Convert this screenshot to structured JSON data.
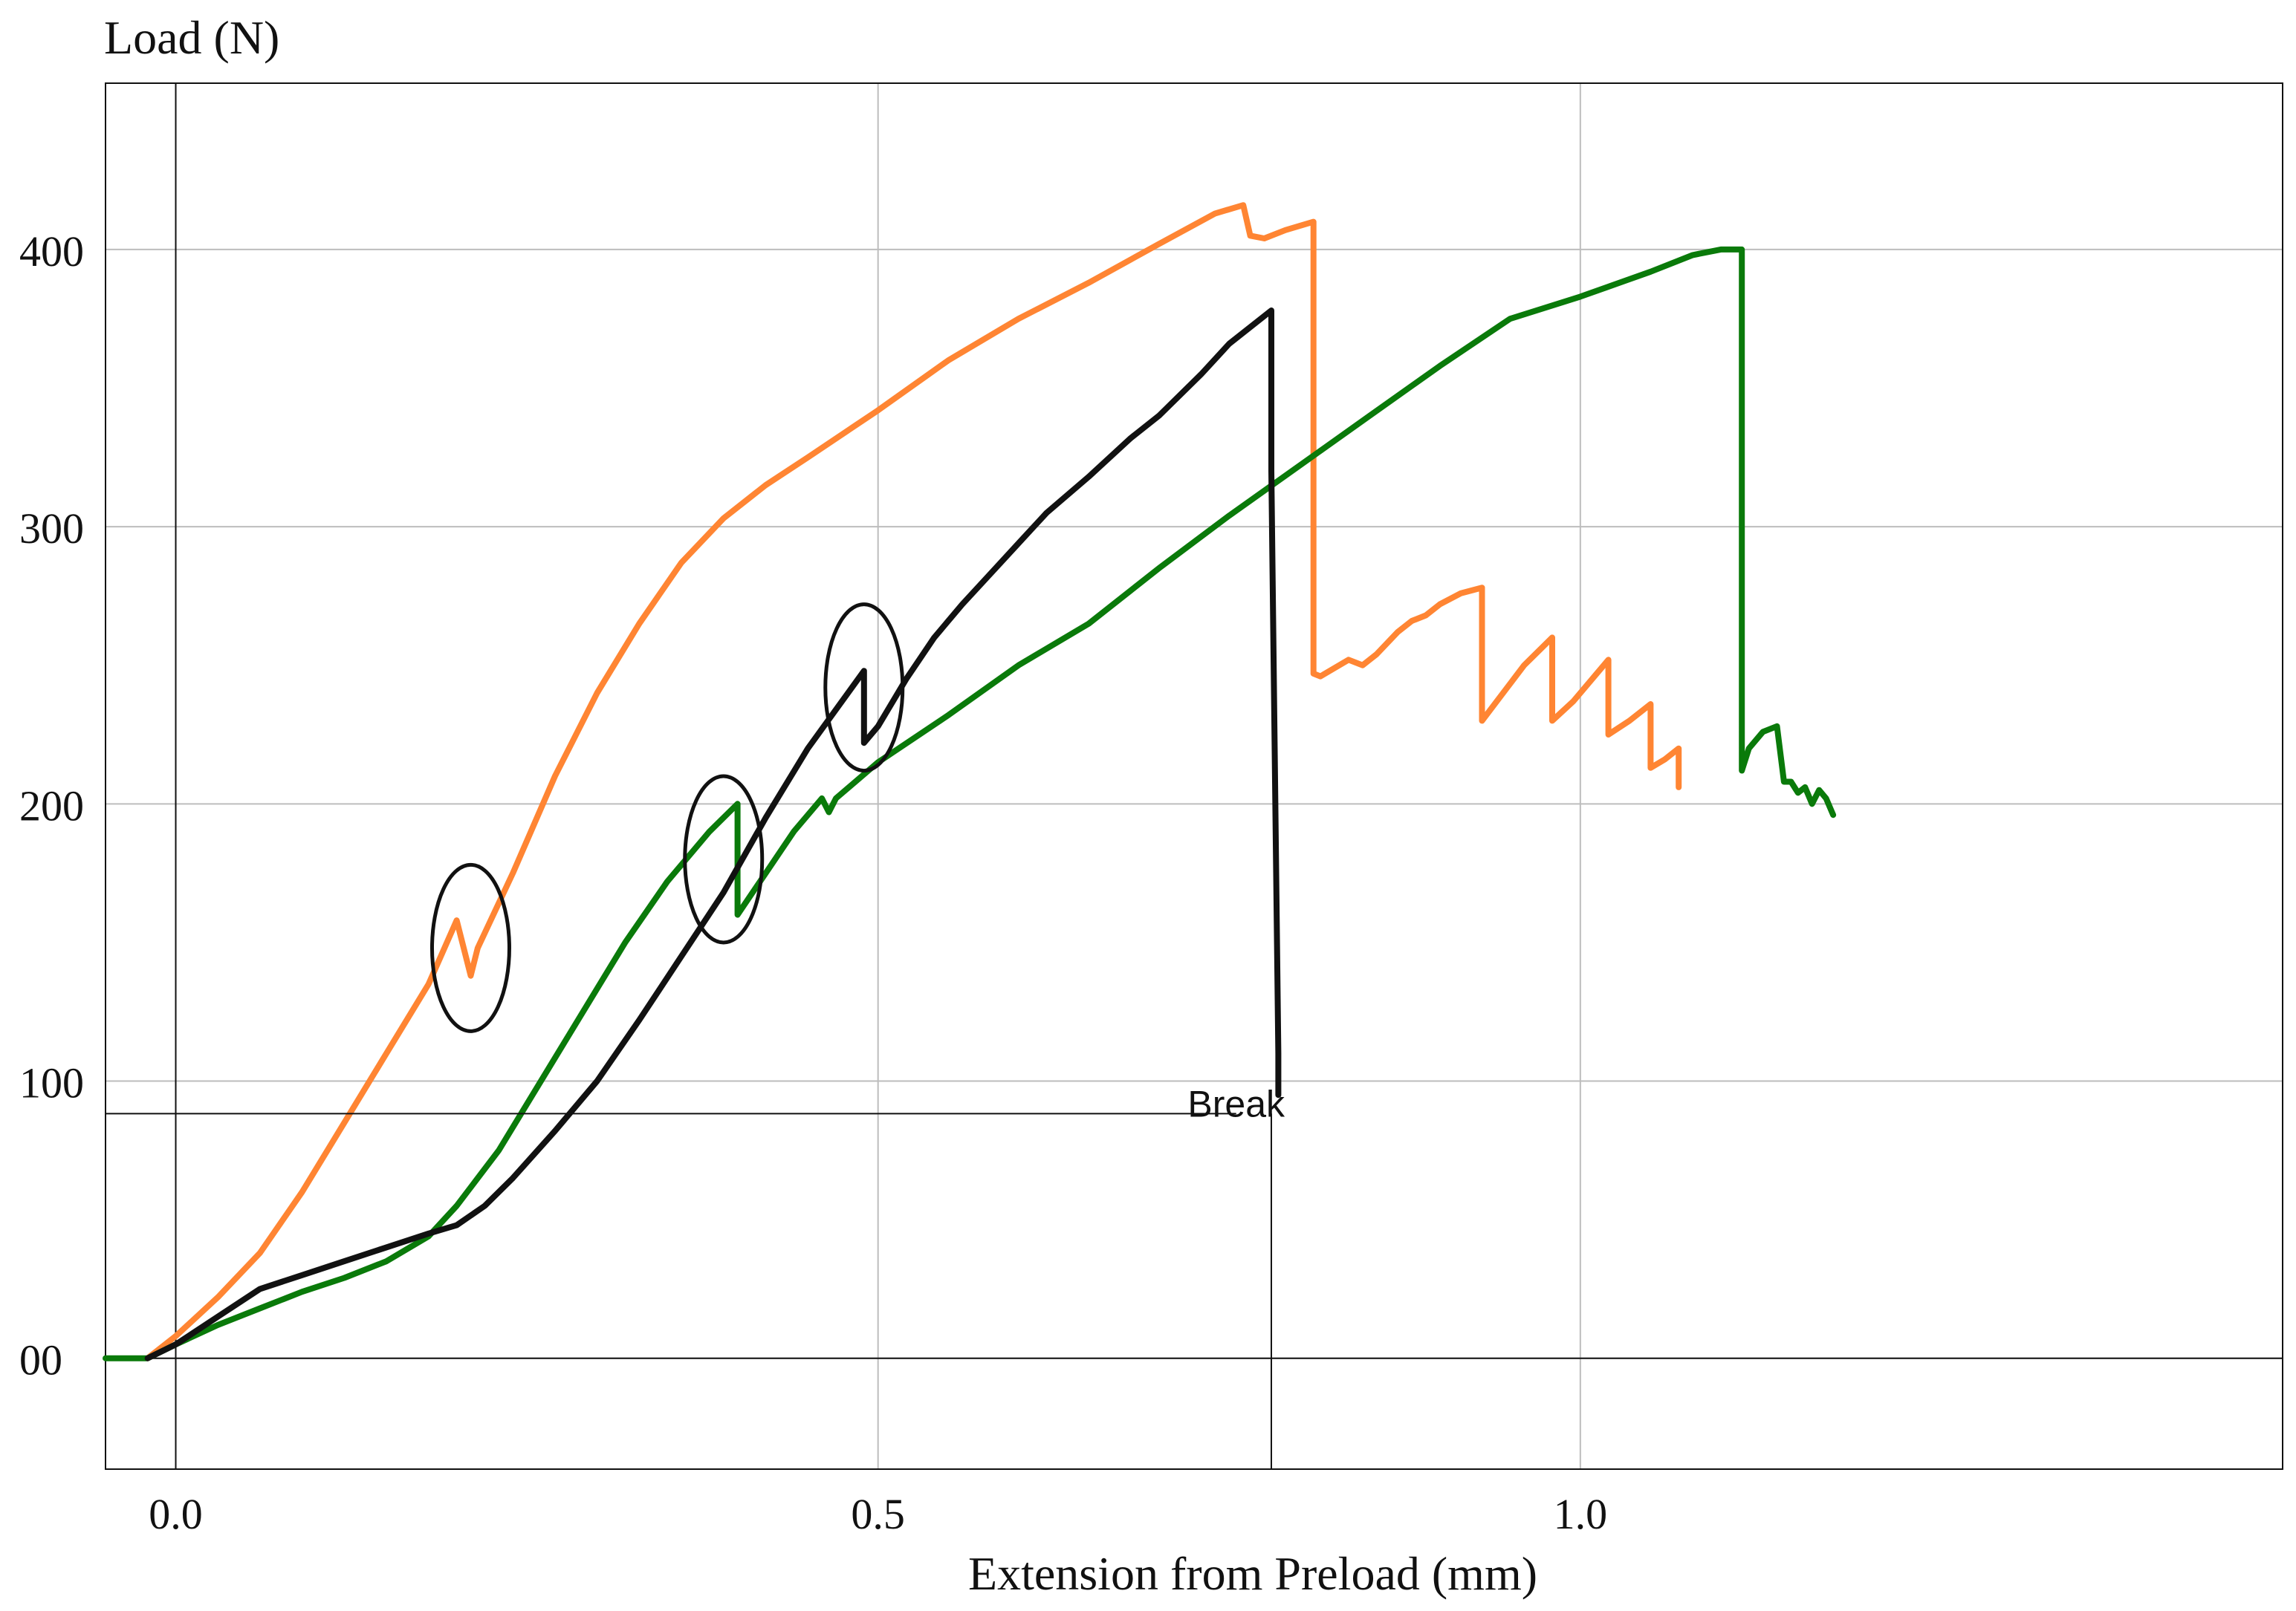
{
  "chart_data": {
    "type": "line",
    "xlabel": "Extension from Preload (mm)",
    "ylabel": "Load (N)",
    "xlim": [
      -0.05,
      1.5
    ],
    "ylim": [
      -40,
      460
    ],
    "x_ticks": [
      0.0,
      0.5,
      1.0
    ],
    "x_tick_labels": [
      "0.0",
      "0.5",
      "1.0"
    ],
    "y_ticks": [
      0,
      100,
      200,
      300,
      400
    ],
    "y_tick_labels": [
      "00",
      "100",
      "200",
      "300",
      "400"
    ],
    "grid": true,
    "legend": "none",
    "series": [
      {
        "color": "#ff8533",
        "x": [
          -0.02,
          0.0,
          0.03,
          0.06,
          0.09,
          0.12,
          0.15,
          0.18,
          0.2,
          0.21,
          0.215,
          0.24,
          0.27,
          0.3,
          0.33,
          0.36,
          0.39,
          0.42,
          0.45,
          0.5,
          0.55,
          0.6,
          0.65,
          0.7,
          0.74,
          0.76,
          0.765,
          0.775,
          0.79,
          0.81,
          0.81,
          0.815,
          0.835,
          0.845,
          0.855,
          0.87,
          0.88,
          0.89,
          0.9,
          0.915,
          0.93,
          0.93,
          0.945,
          0.96,
          0.98,
          0.98,
          0.995,
          1.02,
          1.02,
          1.035,
          1.05,
          1.05,
          1.06,
          1.07,
          1.07
        ],
        "y": [
          0,
          8,
          22,
          38,
          60,
          85,
          110,
          135,
          158,
          138,
          148,
          175,
          210,
          240,
          265,
          287,
          303,
          315,
          325,
          342,
          360,
          375,
          388,
          402,
          413,
          416,
          405,
          404,
          407,
          410,
          247,
          246,
          252,
          250,
          254,
          262,
          266,
          268,
          272,
          276,
          278,
          230,
          240,
          250,
          260,
          230,
          237,
          252,
          225,
          230,
          236,
          213,
          216,
          220,
          206
        ]
      },
      {
        "color": "#0a7a0a",
        "x": [
          -0.05,
          -0.02,
          0.0,
          0.03,
          0.06,
          0.09,
          0.12,
          0.15,
          0.18,
          0.2,
          0.23,
          0.26,
          0.29,
          0.32,
          0.35,
          0.38,
          0.4,
          0.4,
          0.42,
          0.44,
          0.46,
          0.465,
          0.47,
          0.5,
          0.55,
          0.6,
          0.65,
          0.7,
          0.75,
          0.8,
          0.85,
          0.9,
          0.95,
          1.0,
          1.05,
          1.08,
          1.1,
          1.115,
          1.115,
          1.12,
          1.13,
          1.14,
          1.145,
          1.15,
          1.155,
          1.16,
          1.165,
          1.17,
          1.175,
          1.18
        ],
        "y": [
          0,
          0,
          5,
          12,
          18,
          24,
          29,
          35,
          44,
          55,
          75,
          100,
          125,
          150,
          172,
          190,
          200,
          160,
          175,
          190,
          202,
          197,
          202,
          215,
          232,
          250,
          265,
          285,
          304,
          322,
          340,
          358,
          375,
          383,
          392,
          398,
          400,
          400,
          212,
          220,
          226,
          228,
          208,
          208,
          204,
          206,
          200,
          205,
          202,
          196
        ]
      },
      {
        "color": "#111111",
        "x": [
          -0.02,
          0.0,
          0.03,
          0.06,
          0.09,
          0.12,
          0.15,
          0.18,
          0.2,
          0.22,
          0.24,
          0.27,
          0.3,
          0.33,
          0.36,
          0.39,
          0.42,
          0.45,
          0.49,
          0.49,
          0.5,
          0.52,
          0.54,
          0.56,
          0.58,
          0.6,
          0.62,
          0.65,
          0.68,
          0.7,
          0.73,
          0.75,
          0.78,
          0.78,
          0.785,
          0.785
        ],
        "y": [
          0,
          5,
          15,
          25,
          30,
          35,
          40,
          45,
          48,
          55,
          65,
          82,
          100,
          122,
          145,
          168,
          195,
          220,
          248,
          222,
          228,
          245,
          260,
          272,
          283,
          294,
          305,
          318,
          332,
          340,
          355,
          366,
          378,
          320,
          110,
          95
        ]
      }
    ],
    "annotations": [
      {
        "text": "Break",
        "x": 0.755,
        "y": 92
      }
    ],
    "circled_regions": [
      {
        "x": 0.21,
        "y": 148
      },
      {
        "x": 0.39,
        "y": 180
      },
      {
        "x": 0.49,
        "y": 242
      }
    ]
  }
}
